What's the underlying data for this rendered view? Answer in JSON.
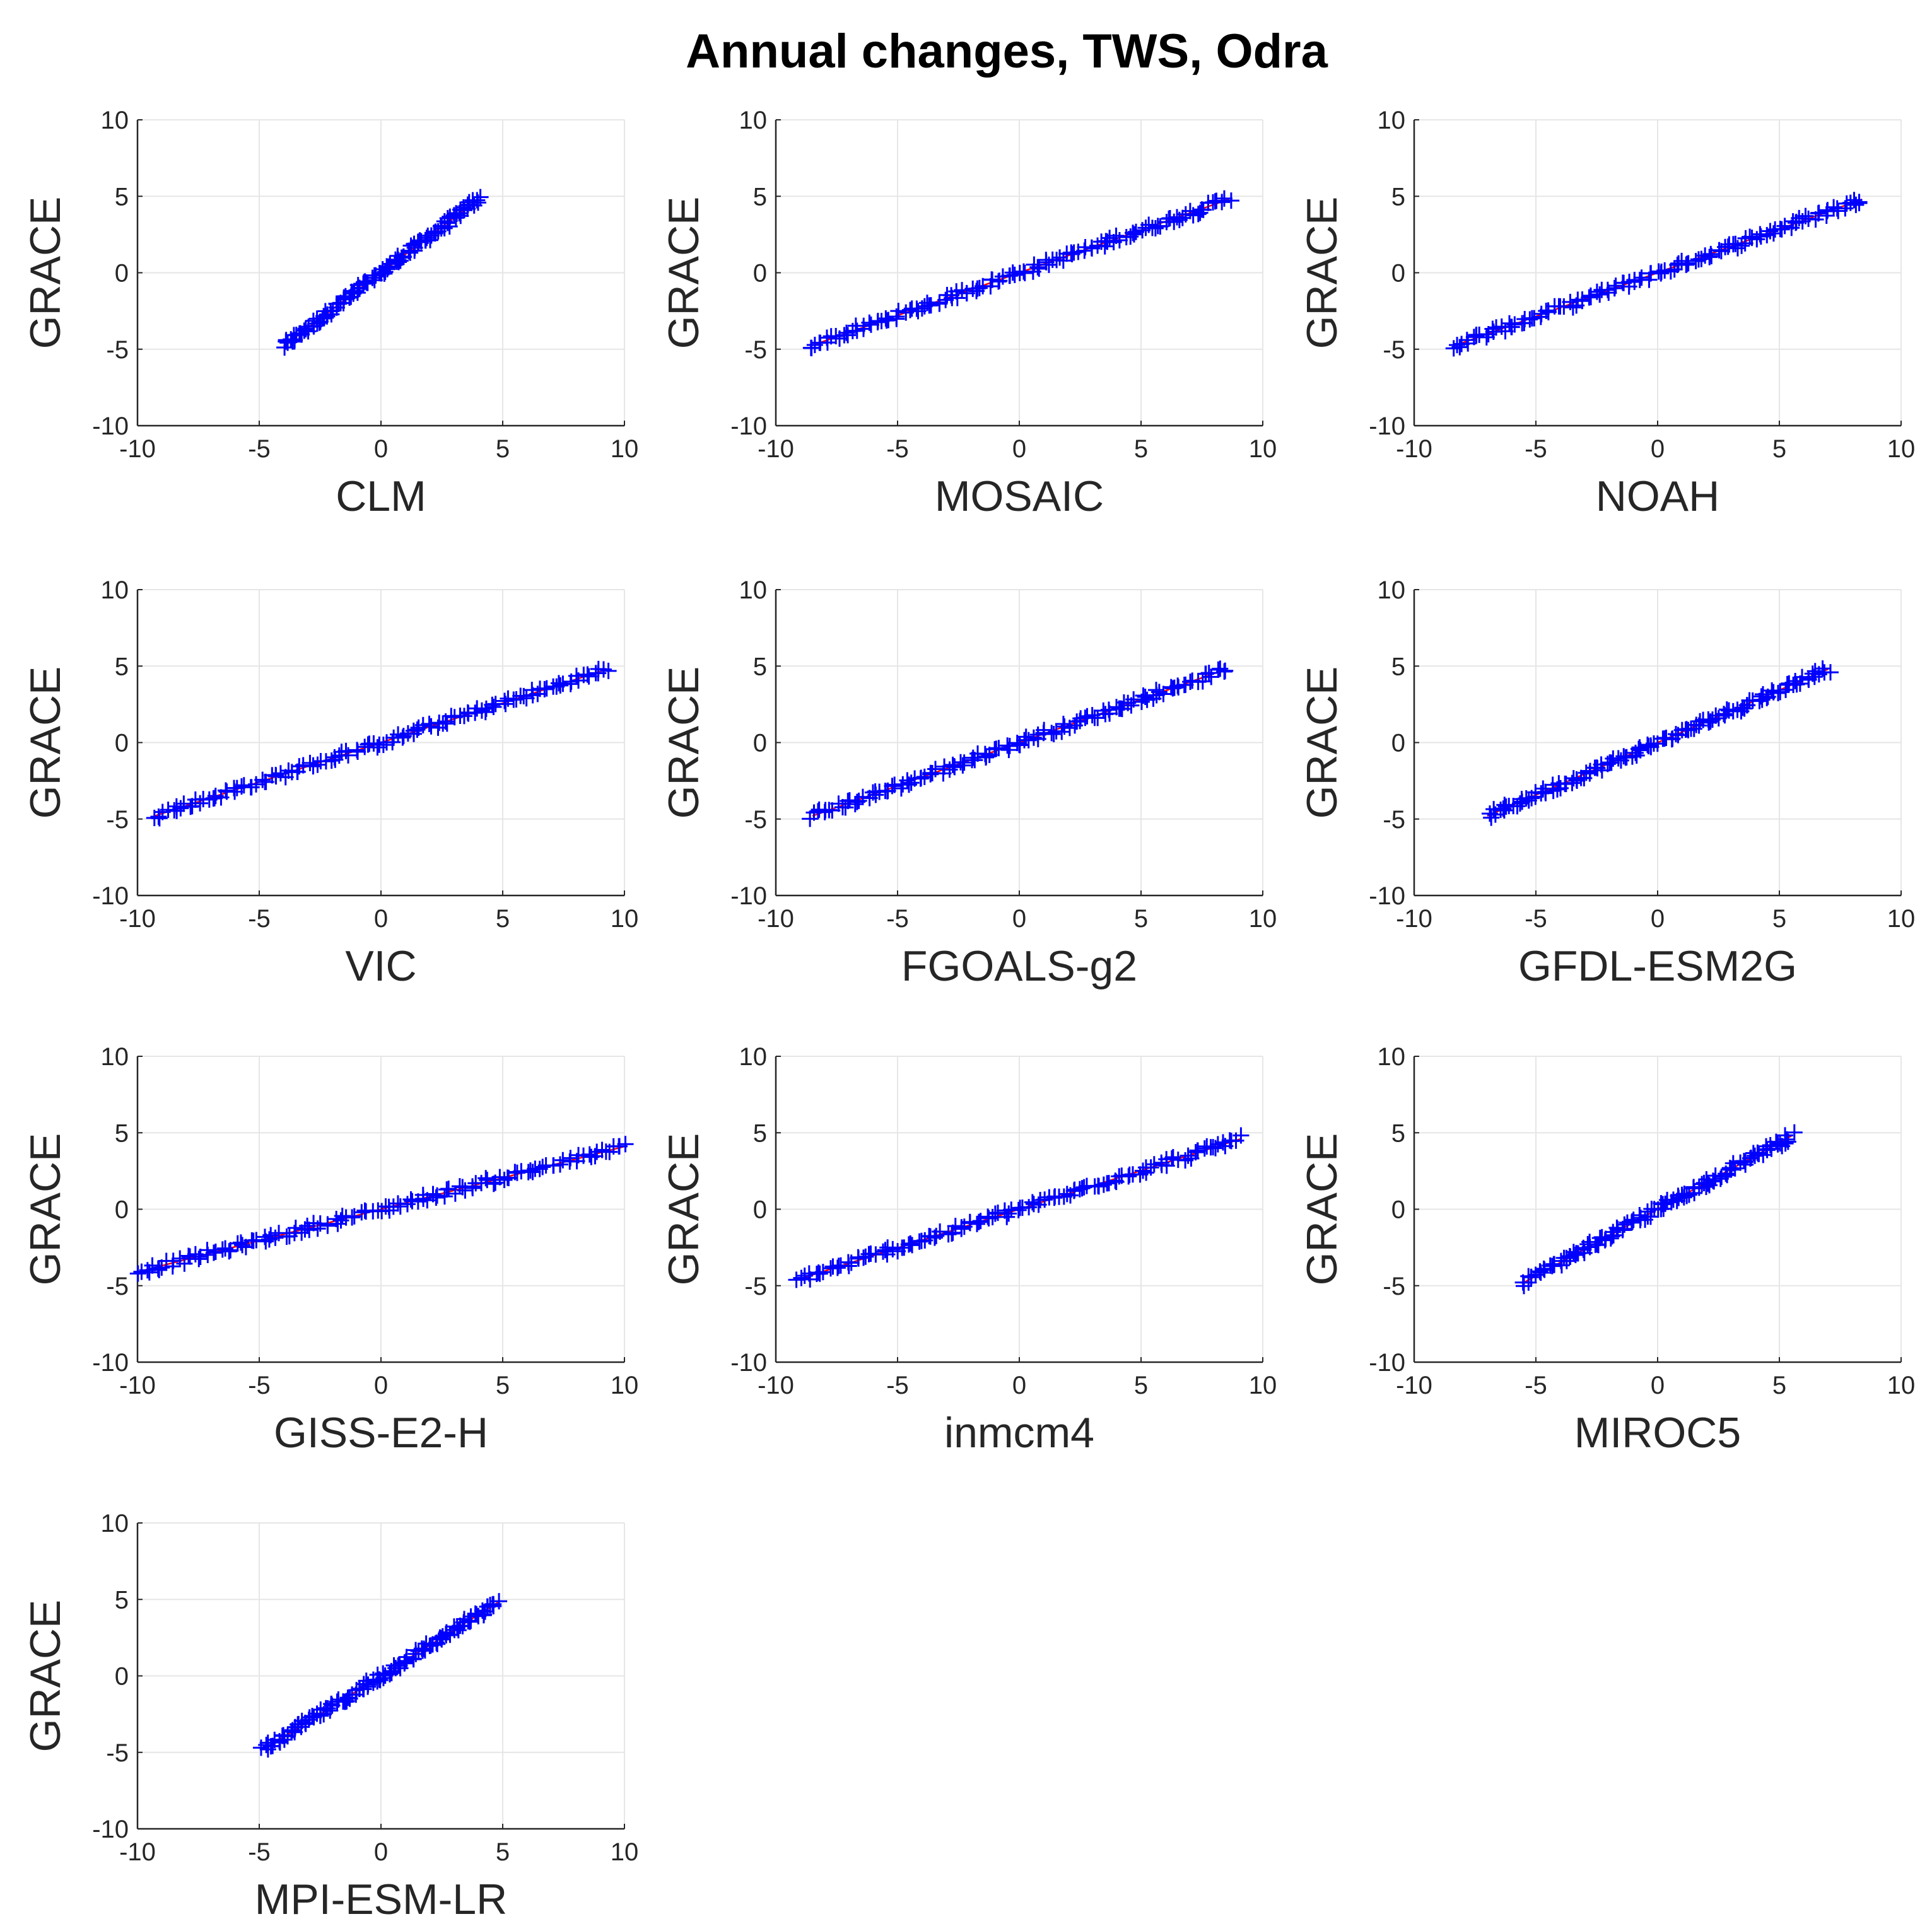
{
  "title": "Annual changes, TWS, Odra",
  "colors": {
    "marker": "#0000ff",
    "fit": "#ff0000",
    "axes": "#262626",
    "grid": "#e6e6e6"
  },
  "chart_data": [
    {
      "type": "scatter",
      "title": "",
      "xlabel": "CLM",
      "ylabel": "GRACE",
      "xlim": [
        -10,
        10
      ],
      "ylim": [
        -10,
        10
      ],
      "xticks": [
        "-10",
        "-5",
        "0",
        "5",
        "10"
      ],
      "yticks": [
        "10",
        "5",
        "0",
        "-5",
        "-10"
      ],
      "grid": true,
      "fit_line": {
        "x": [
          -4.0,
          4.0
        ],
        "y": [
          -4.8,
          4.8
        ]
      },
      "x_range": [
        -4.0,
        4.0
      ],
      "y_range": [
        -4.8,
        4.8
      ]
    },
    {
      "type": "scatter",
      "title": "",
      "xlabel": "MOSAIC",
      "ylabel": "GRACE",
      "xlim": [
        -10,
        10
      ],
      "ylim": [
        -10,
        10
      ],
      "xticks": [
        "-10",
        "-5",
        "0",
        "5",
        "10"
      ],
      "yticks": [
        "10",
        "5",
        "0",
        "-5",
        "-10"
      ],
      "grid": true,
      "fit_line": {
        "x": [
          -8.6,
          8.6
        ],
        "y": [
          -4.8,
          4.8
        ]
      },
      "x_range": [
        -8.6,
        8.6
      ],
      "y_range": [
        -4.8,
        4.8
      ]
    },
    {
      "type": "scatter",
      "title": "",
      "xlabel": "NOAH",
      "ylabel": "GRACE",
      "xlim": [
        -10,
        10
      ],
      "ylim": [
        -10,
        10
      ],
      "xticks": [
        "-10",
        "-5",
        "0",
        "5",
        "10"
      ],
      "yticks": [
        "10",
        "5",
        "0",
        "-5",
        "-10"
      ],
      "grid": true,
      "fit_line": {
        "x": [
          -8.4,
          8.4
        ],
        "y": [
          -4.8,
          4.8
        ]
      },
      "x_range": [
        -8.4,
        8.4
      ],
      "y_range": [
        -4.8,
        4.8
      ]
    },
    {
      "type": "scatter",
      "title": "",
      "xlabel": "VIC",
      "ylabel": "GRACE",
      "xlim": [
        -10,
        10
      ],
      "ylim": [
        -10,
        10
      ],
      "xticks": [
        "-10",
        "-5",
        "0",
        "5",
        "10"
      ],
      "yticks": [
        "10",
        "5",
        "0",
        "-5",
        "-10"
      ],
      "grid": true,
      "fit_line": {
        "x": [
          -9.3,
          9.3
        ],
        "y": [
          -4.8,
          4.8
        ]
      },
      "x_range": [
        -9.3,
        9.3
      ],
      "y_range": [
        -4.8,
        4.8
      ]
    },
    {
      "type": "scatter",
      "title": "",
      "xlabel": "FGOALS-g2",
      "ylabel": "GRACE",
      "xlim": [
        -10,
        10
      ],
      "ylim": [
        -10,
        10
      ],
      "xticks": [
        "-10",
        "-5",
        "0",
        "5",
        "10"
      ],
      "yticks": [
        "10",
        "5",
        "0",
        "-5",
        "-10"
      ],
      "grid": true,
      "fit_line": {
        "x": [
          -8.5,
          8.5
        ],
        "y": [
          -4.8,
          4.8
        ]
      },
      "x_range": [
        -8.5,
        8.5
      ],
      "y_range": [
        -4.8,
        4.8
      ]
    },
    {
      "type": "scatter",
      "title": "",
      "xlabel": "GFDL-ESM2G",
      "ylabel": "GRACE",
      "xlim": [
        -10,
        10
      ],
      "ylim": [
        -10,
        10
      ],
      "xticks": [
        "-10",
        "-5",
        "0",
        "5",
        "10"
      ],
      "yticks": [
        "10",
        "5",
        "0",
        "-5",
        "-10"
      ],
      "grid": true,
      "fit_line": {
        "x": [
          -7.0,
          7.0
        ],
        "y": [
          -4.8,
          4.8
        ]
      },
      "x_range": [
        -7.0,
        7.0
      ],
      "y_range": [
        -4.8,
        4.8
      ]
    },
    {
      "type": "scatter",
      "title": "",
      "xlabel": "GISS-E2-H",
      "ylabel": "GRACE",
      "xlim": [
        -10,
        10
      ],
      "ylim": [
        -10,
        10
      ],
      "xticks": [
        "-10",
        "-5",
        "0",
        "5",
        "10"
      ],
      "yticks": [
        "10",
        "5",
        "0",
        "-5",
        "-10"
      ],
      "grid": true,
      "fit_line": {
        "x": [
          -10.0,
          10.0
        ],
        "y": [
          -4.1,
          4.1
        ]
      },
      "x_range": [
        -10.0,
        10.0
      ],
      "y_range": [
        -4.1,
        4.1
      ]
    },
    {
      "type": "scatter",
      "title": "",
      "xlabel": "inmcm4",
      "ylabel": "GRACE",
      "xlim": [
        -10,
        10
      ],
      "ylim": [
        -10,
        10
      ],
      "xticks": [
        "-10",
        "-5",
        "0",
        "5",
        "10"
      ],
      "yticks": [
        "10",
        "5",
        "0",
        "-5",
        "-10"
      ],
      "grid": true,
      "fit_line": {
        "x": [
          -9.1,
          9.1
        ],
        "y": [
          -4.6,
          4.6
        ]
      },
      "x_range": [
        -9.1,
        9.1
      ],
      "y_range": [
        -4.6,
        4.6
      ]
    },
    {
      "type": "scatter",
      "title": "",
      "xlabel": "MIROC5",
      "ylabel": "GRACE",
      "xlim": [
        -10,
        10
      ],
      "ylim": [
        -10,
        10
      ],
      "xticks": [
        "-10",
        "-5",
        "0",
        "5",
        "10"
      ],
      "yticks": [
        "10",
        "5",
        "0",
        "-5",
        "-10"
      ],
      "grid": true,
      "fit_line": {
        "x": [
          -5.5,
          5.5
        ],
        "y": [
          -4.8,
          4.8
        ]
      },
      "x_range": [
        -5.5,
        5.5
      ],
      "y_range": [
        -4.8,
        4.8
      ]
    },
    {
      "type": "scatter",
      "title": "",
      "xlabel": "MPI-ESM-LR",
      "ylabel": "GRACE",
      "xlim": [
        -10,
        10
      ],
      "ylim": [
        -10,
        10
      ],
      "xticks": [
        "-10",
        "-5",
        "0",
        "5",
        "10"
      ],
      "yticks": [
        "10",
        "5",
        "0",
        "-5",
        "-10"
      ],
      "grid": true,
      "fit_line": {
        "x": [
          -4.8,
          4.8
        ],
        "y": [
          -4.8,
          4.8
        ]
      },
      "x_range": [
        -4.8,
        4.8
      ],
      "y_range": [
        -4.8,
        4.8
      ]
    }
  ]
}
